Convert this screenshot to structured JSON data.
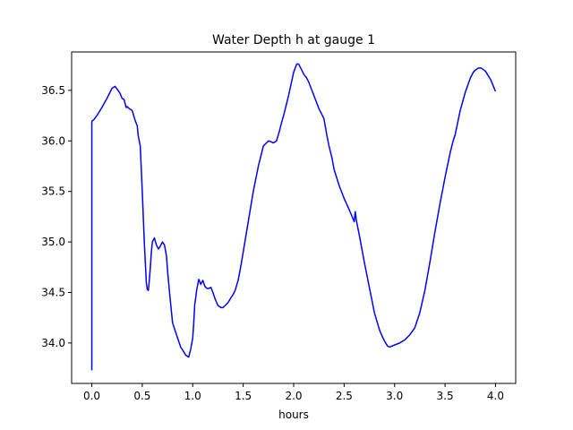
{
  "chart_data": {
    "type": "line",
    "title": "Water Depth h at gauge 1",
    "xlabel": "hours",
    "ylabel": "",
    "xlim": [
      -0.2,
      4.2
    ],
    "ylim": [
      33.6,
      36.88
    ],
    "xticks": [
      0.0,
      0.5,
      1.0,
      1.5,
      2.0,
      2.5,
      3.0,
      3.5,
      4.0
    ],
    "xtick_labels": [
      "0.0",
      "0.5",
      "1.0",
      "1.5",
      "2.0",
      "2.5",
      "3.0",
      "3.5",
      "4.0"
    ],
    "yticks": [
      34.0,
      34.5,
      35.0,
      35.5,
      36.0,
      36.5
    ],
    "ytick_labels": [
      "34.0",
      "34.5",
      "35.0",
      "35.5",
      "36.0",
      "36.5"
    ],
    "grid": false,
    "series": [
      {
        "color": "#0000ff",
        "x": [
          0.0,
          0.0,
          0.005,
          0.02,
          0.05,
          0.1,
          0.15,
          0.2,
          0.23,
          0.26,
          0.28,
          0.3,
          0.32,
          0.34,
          0.35,
          0.37,
          0.4,
          0.43,
          0.45,
          0.46,
          0.48,
          0.5,
          0.52,
          0.54,
          0.55,
          0.56,
          0.57,
          0.58,
          0.59,
          0.6,
          0.62,
          0.64,
          0.66,
          0.68,
          0.7,
          0.72,
          0.74,
          0.75,
          0.77,
          0.79,
          0.8,
          0.82,
          0.84,
          0.86,
          0.88,
          0.9,
          0.93,
          0.96,
          0.98,
          1.0,
          1.01,
          1.02,
          1.04,
          1.06,
          1.08,
          1.1,
          1.12,
          1.14,
          1.16,
          1.18,
          1.2,
          1.22,
          1.25,
          1.28,
          1.3,
          1.32,
          1.35,
          1.38,
          1.4,
          1.42,
          1.45,
          1.48,
          1.5,
          1.55,
          1.6,
          1.65,
          1.7,
          1.75,
          1.78,
          1.8,
          1.83,
          1.86,
          1.88,
          1.9,
          1.95,
          2.0,
          2.03,
          2.05,
          2.07,
          2.1,
          2.13,
          2.15,
          2.2,
          2.25,
          2.28,
          2.3,
          2.33,
          2.35,
          2.38,
          2.4,
          2.45,
          2.5,
          2.55,
          2.6,
          2.61,
          2.62,
          2.65,
          2.7,
          2.75,
          2.8,
          2.85,
          2.88,
          2.9,
          2.93,
          2.95,
          3.0,
          3.05,
          3.1,
          3.15,
          3.2,
          3.25,
          3.3,
          3.35,
          3.4,
          3.45,
          3.5,
          3.55,
          3.58,
          3.6,
          3.65,
          3.7,
          3.75,
          3.78,
          3.8,
          3.83,
          3.86,
          3.9,
          3.95,
          4.0
        ],
        "y": [
          33.73,
          36.18,
          36.2,
          36.21,
          36.25,
          36.33,
          36.42,
          36.52,
          36.54,
          36.5,
          36.47,
          36.42,
          36.41,
          36.33,
          36.34,
          36.32,
          36.3,
          36.2,
          36.15,
          36.05,
          35.95,
          35.5,
          35.0,
          34.6,
          34.53,
          34.52,
          34.62,
          34.75,
          34.9,
          35.0,
          35.04,
          34.97,
          34.93,
          34.96,
          35.0,
          34.97,
          34.86,
          34.72,
          34.5,
          34.3,
          34.2,
          34.14,
          34.08,
          34.02,
          33.96,
          33.93,
          33.88,
          33.86,
          33.94,
          34.05,
          34.2,
          34.38,
          34.53,
          34.63,
          34.58,
          34.62,
          34.56,
          34.54,
          34.54,
          34.55,
          34.5,
          34.44,
          34.37,
          34.35,
          34.35,
          34.37,
          34.4,
          34.45,
          34.48,
          34.52,
          34.62,
          34.78,
          34.9,
          35.2,
          35.5,
          35.75,
          35.95,
          36.0,
          35.99,
          35.98,
          36.0,
          36.1,
          36.18,
          36.25,
          36.45,
          36.68,
          36.76,
          36.76,
          36.72,
          36.66,
          36.62,
          36.58,
          36.45,
          36.32,
          36.26,
          36.22,
          36.05,
          35.95,
          35.83,
          35.72,
          35.56,
          35.43,
          35.32,
          35.2,
          35.3,
          35.22,
          35.07,
          34.8,
          34.55,
          34.3,
          34.13,
          34.06,
          34.02,
          33.97,
          33.96,
          33.98,
          34.0,
          34.03,
          34.08,
          34.15,
          34.3,
          34.52,
          34.8,
          35.1,
          35.38,
          35.64,
          35.88,
          36.0,
          36.06,
          36.3,
          36.48,
          36.62,
          36.68,
          36.7,
          36.72,
          36.72,
          36.69,
          36.61,
          36.49
        ]
      }
    ]
  }
}
